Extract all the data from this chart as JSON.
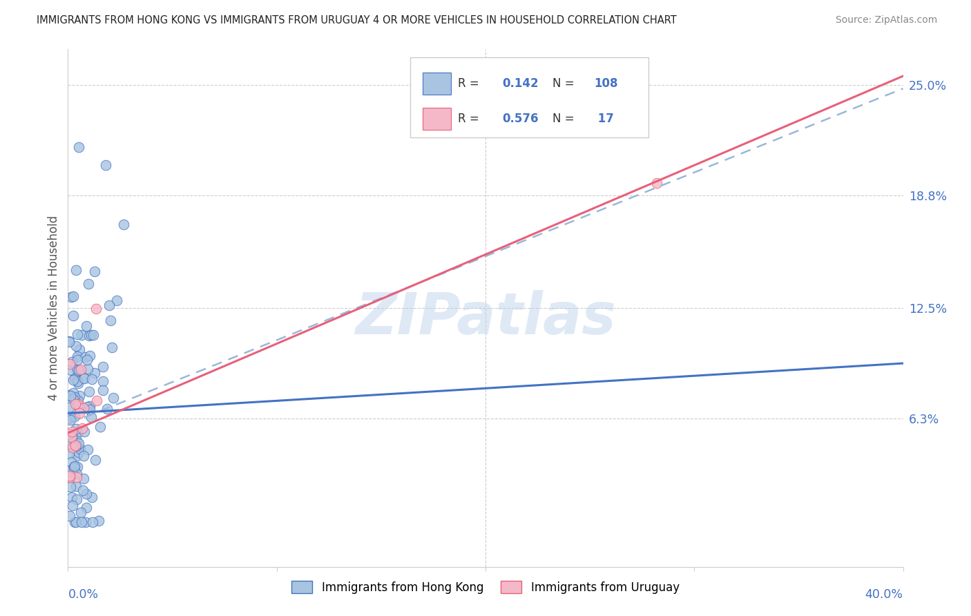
{
  "title": "IMMIGRANTS FROM HONG KONG VS IMMIGRANTS FROM URUGUAY 4 OR MORE VEHICLES IN HOUSEHOLD CORRELATION CHART",
  "source": "Source: ZipAtlas.com",
  "xlabel_bottom_left": "0.0%",
  "xlabel_bottom_right": "40.0%",
  "ylabel": "4 or more Vehicles in Household",
  "ytick_labels": [
    "25.0%",
    "18.8%",
    "12.5%",
    "6.3%"
  ],
  "ytick_values": [
    0.25,
    0.188,
    0.125,
    0.063
  ],
  "xlim": [
    0.0,
    0.4
  ],
  "ylim": [
    -0.02,
    0.27
  ],
  "hk_color": "#a8c4e0",
  "hk_edge_color": "#4472c4",
  "uy_color": "#f4b8c8",
  "uy_edge_color": "#e8607a",
  "hk_line_color": "#4472c4",
  "uy_line_color": "#e8607a",
  "dashed_line_color": "#99b8d8",
  "watermark": "ZIPatlas",
  "legend_R_hk": "R = 0.142",
  "legend_N_hk": "N = 108",
  "legend_R_uy": "R = 0.576",
  "legend_N_uy": "N =  17",
  "title_color": "#222222",
  "source_color": "#888888",
  "ylabel_color": "#555555",
  "tick_color": "#4472c4",
  "grid_color": "#cccccc",
  "background_color": "#ffffff",
  "legend_label_hk": "Immigrants from Hong Kong",
  "legend_label_uy": "Immigrants from Uruguay"
}
